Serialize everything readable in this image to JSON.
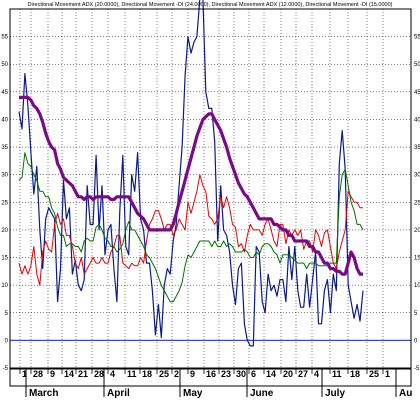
{
  "chart_data": {
    "type": "line",
    "title": "Directional Movement ADX (20.0000), Directional Movement -DI (24.0000), Directional Movement ADX (12.0000), Directional Movement -DI (15.0000)",
    "ylim": [
      -5,
      60
    ],
    "y_ticks": [
      55,
      50,
      45,
      40,
      35,
      30,
      25,
      20,
      15,
      10,
      5,
      0,
      -5
    ],
    "x_tick_labels": [
      "1",
      "28",
      "9",
      "14",
      "21",
      "28",
      "4",
      "11",
      "18",
      "25",
      "2",
      "9",
      "16",
      "23",
      "30",
      "6",
      "14",
      "20",
      "27",
      "4",
      "11",
      "18",
      "25",
      "1"
    ],
    "months": [
      "March",
      "April",
      "May",
      "June",
      "July",
      "Au"
    ],
    "zero_line": 0,
    "grid": true,
    "x": [
      0,
      1,
      2,
      3,
      4,
      5,
      6,
      7,
      8,
      9,
      10,
      11,
      12,
      13,
      14,
      15,
      16,
      17,
      18,
      19,
      20,
      21,
      22,
      23,
      24,
      25,
      26,
      27,
      28,
      29,
      30,
      31,
      32,
      33,
      34,
      35,
      36,
      37,
      38,
      39,
      40,
      41,
      42,
      43,
      44,
      45,
      46,
      47,
      48,
      49,
      50,
      51,
      52,
      53,
      54,
      55,
      56,
      57,
      58,
      59,
      60,
      61,
      62,
      63,
      64,
      65,
      66,
      67,
      68,
      69,
      70,
      71,
      72,
      73,
      74,
      75,
      76,
      77,
      78,
      79,
      80,
      81,
      82,
      83,
      84,
      85,
      86,
      87,
      88,
      89,
      90,
      91,
      92,
      93,
      94,
      95,
      96,
      97,
      98,
      99,
      100,
      101,
      102,
      103,
      104,
      105,
      106,
      107,
      108,
      109,
      110,
      111,
      112,
      113,
      114,
      115,
      116
    ],
    "series": [
      {
        "color": "#0a1a8c",
        "values": [
          41.4,
          38.3,
          48.3,
          42.5,
          34.0,
          26.5,
          31.5,
          20.0,
          13.0,
          22.0,
          24.0,
          23.0,
          22.0,
          7.0,
          13.0,
          29.0,
          22.0,
          24.0,
          12.0,
          14.5,
          10.0,
          9.0,
          11.0,
          28.0,
          21.0,
          21.0,
          33.5,
          20.0,
          28.0,
          15.5,
          20.0,
          21.0,
          13.0,
          7.0,
          23.5,
          33.5,
          17.0,
          15.5,
          30.0,
          27.0,
          34.0,
          22.0,
          20.0,
          14.0,
          14.0,
          9.0,
          1.0,
          6.5,
          0.5,
          10.0,
          13.0,
          12.0,
          18.0,
          21.0,
          28.0,
          35.0,
          48.0,
          55.0,
          52.0,
          54.0,
          55.0,
          62.0,
          62.0,
          45.0,
          42.0,
          42.0,
          36.0,
          18.0,
          28.0,
          20.0,
          19.0,
          16.0,
          10.0,
          6.5,
          13.0,
          14.0,
          3.0,
          0.0,
          -1.0,
          -1.0,
          17.0,
          16.0,
          7.0,
          5.0,
          12.0,
          9.0,
          10.0,
          8.0,
          11.0,
          11.0,
          7.0,
          17.0,
          11.0,
          17.0,
          9.0,
          6.0,
          6.0,
          12.0,
          6.0,
          11.0,
          16.0,
          3.0,
          3.0,
          9.0,
          11.0,
          5.0,
          12.0,
          9.0,
          32.0,
          38.0,
          31.0,
          10.0,
          7.0,
          4.0,
          6.5,
          3.5,
          9.0
        ]
      },
      {
        "color": "#e60000",
        "values": [
          14.0,
          12.0,
          13.5,
          12.0,
          13.5,
          17.0,
          12.0,
          10.0,
          16.0,
          18.0,
          16.5,
          16.0,
          21.0,
          23.0,
          21.0,
          22.0,
          19.0,
          19.0,
          17.0,
          14.0,
          13.0,
          15.0,
          12.0,
          13.0,
          14.0,
          15.0,
          14.0,
          14.0,
          15.0,
          14.0,
          14.0,
          16.0,
          17.0,
          19.0,
          19.0,
          14.0,
          13.5,
          13.0,
          14.0,
          13.5,
          13.5,
          15.0,
          14.0,
          18.0,
          21.0,
          22.0,
          23.5,
          23.5,
          22.0,
          20.0,
          21.0,
          21.0,
          19.0,
          20.0,
          22.0,
          21.0,
          20.0,
          25.0,
          23.0,
          25.0,
          27.0,
          30.0,
          28.0,
          27.0,
          22.5,
          22.0,
          21.0,
          22.0,
          26.0,
          24.0,
          26.0,
          24.0,
          21.0,
          20.5,
          17.0,
          17.5,
          16.0,
          19.0,
          21.0,
          20.0,
          20.0,
          20.0,
          19.0,
          21.0,
          22.0,
          20.0,
          18.0,
          17.0,
          21.0,
          21.0,
          17.5,
          20.0,
          19.0,
          20.0,
          19.0,
          20.0,
          16.5,
          18.0,
          18.0,
          16.0,
          20.0,
          19.0,
          17.0,
          19.5,
          20.0,
          17.0,
          14.0,
          13.0,
          16.0,
          18.0,
          20.0,
          27.0,
          26.0,
          25.0,
          25.0,
          24.0,
          24.0
        ]
      },
      {
        "color": "#007000",
        "values": [
          29.0,
          29.5,
          34.0,
          32.0,
          31.5,
          30.0,
          29.0,
          27.0,
          27.0,
          26.0,
          26.0,
          24.0,
          23.0,
          20.5,
          19.0,
          19.0,
          17.0,
          17.5,
          17.5,
          17.0,
          17.0,
          16.0,
          18.0,
          18.5,
          18.0,
          18.0,
          20.5,
          21.0,
          20.0,
          18.5,
          18.0,
          17.0,
          17.0,
          16.0,
          16.5,
          17.5,
          20.0,
          21.5,
          20.0,
          20.0,
          19.0,
          18.0,
          17.0,
          15.5,
          15.0,
          14.0,
          13.0,
          11.5,
          10.0,
          9.0,
          8.0,
          7.0,
          7.0,
          8.0,
          9.0,
          10.5,
          13.5,
          15.5,
          15.0,
          16.0,
          17.0,
          18.0,
          18.0,
          18.0,
          18.0,
          17.0,
          18.0,
          17.0,
          17.0,
          18.0,
          17.0,
          17.5,
          17.0,
          16.0,
          16.0,
          16.0,
          16.5,
          16.0,
          15.0,
          15.0,
          16.0,
          15.5,
          17.0,
          17.5,
          17.5,
          17.0,
          16.0,
          15.5,
          14.0,
          15.5,
          15.5,
          15.5,
          15.0,
          14.5,
          14.0,
          14.0,
          14.0,
          13.0,
          14.0,
          14.0,
          14.0,
          13.5,
          13.5,
          13.5,
          13.5,
          14.0,
          14.0,
          14.0,
          26.0,
          30.0,
          31.0,
          28.0,
          25.0,
          23.5,
          21.0,
          21.0,
          20.0
        ]
      },
      {
        "color": "#7a0a86",
        "values": [
          44.0,
          44.0,
          44.0,
          44.0,
          43.5,
          42.5,
          42.0,
          41.0,
          39.5,
          37.5,
          36.0,
          35.0,
          34.5,
          32.0,
          31.0,
          29.5,
          29.0,
          28.5,
          28.0,
          27.0,
          26.0,
          26.0,
          25.5,
          26.0,
          26.0,
          25.5,
          26.0,
          26.0,
          26.0,
          26.0,
          26.0,
          25.5,
          25.5,
          26.0,
          26.0,
          26.0,
          26.0,
          26.0,
          25.0,
          24.0,
          23.0,
          22.5,
          22.0,
          21.0,
          20.0,
          20.0,
          20.0,
          20.0,
          20.0,
          20.0,
          20.0,
          20.0,
          21.0,
          23.0,
          25.0,
          27.0,
          29.0,
          31.0,
          33.0,
          35.0,
          37.0,
          38.5,
          40.0,
          40.5,
          41.0,
          41.0,
          40.0,
          39.0,
          38.0,
          36.5,
          35.0,
          33.0,
          31.5,
          30.0,
          28.5,
          27.5,
          26.5,
          26.0,
          25.0,
          24.0,
          23.0,
          22.0,
          22.0,
          22.0,
          22.0,
          22.0,
          21.0,
          21.0,
          20.5,
          20.0,
          20.0,
          19.0,
          19.0,
          18.0,
          18.0,
          18.0,
          18.0,
          18.0,
          17.0,
          17.0,
          16.0,
          16.0,
          15.0,
          14.0,
          14.0,
          13.0,
          13.0,
          12.5,
          12.5,
          12.0,
          12.0,
          14.0,
          16.0,
          15.0,
          13.0,
          12.0,
          12.0
        ]
      }
    ]
  }
}
